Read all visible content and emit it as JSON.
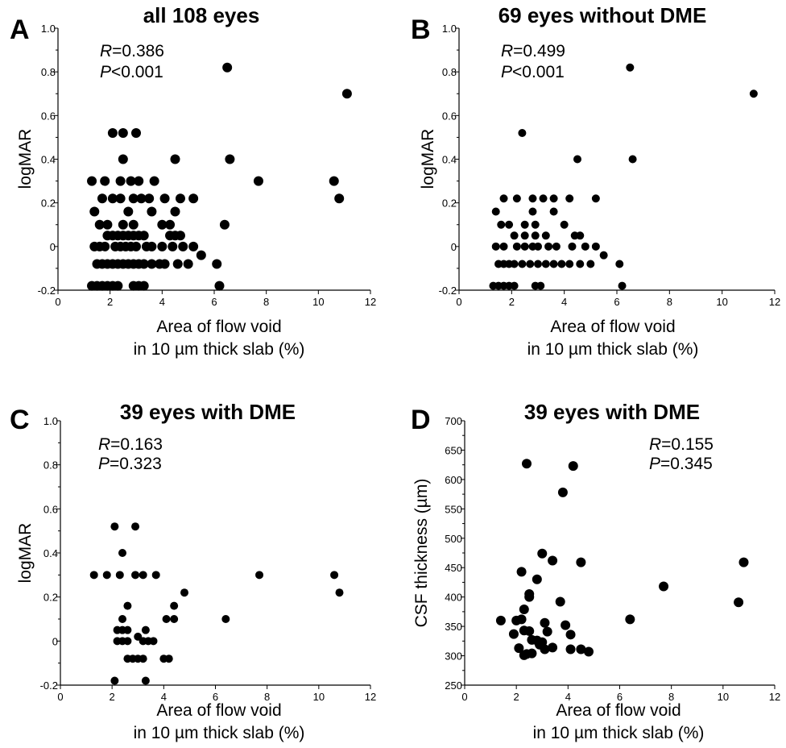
{
  "chart_data": [
    {
      "type": "scatter",
      "panel": "A",
      "title": "all 108 eyes",
      "xlabel_line1": "Area of flow void",
      "xlabel_line2": "in 10 µm thick slab (%)",
      "ylabel": "logMAR",
      "xlim": [
        0,
        12
      ],
      "ylim": [
        -0.2,
        1.0
      ],
      "xticks": [
        "0",
        "2",
        "4",
        "6",
        "8",
        "10",
        "12"
      ],
      "yticks": [
        "-0.2",
        "0",
        "0.2",
        "0.4",
        "0.6",
        "0.8",
        "1.0"
      ],
      "stat": {
        "r_label": "R",
        "r_value": "=0.386",
        "p_label": "P",
        "p_value": "<0.001"
      },
      "points": [
        [
          1.3,
          -0.18
        ],
        [
          1.5,
          -0.18
        ],
        [
          1.7,
          -0.18
        ],
        [
          1.9,
          -0.18
        ],
        [
          2.1,
          -0.18
        ],
        [
          2.3,
          -0.18
        ],
        [
          2.9,
          -0.18
        ],
        [
          3.1,
          -0.18
        ],
        [
          3.3,
          -0.18
        ],
        [
          6.2,
          -0.18
        ],
        [
          1.5,
          -0.08
        ],
        [
          1.7,
          -0.08
        ],
        [
          1.9,
          -0.08
        ],
        [
          2.1,
          -0.08
        ],
        [
          2.3,
          -0.08
        ],
        [
          2.5,
          -0.08
        ],
        [
          2.7,
          -0.08
        ],
        [
          2.9,
          -0.08
        ],
        [
          3.1,
          -0.08
        ],
        [
          3.3,
          -0.08
        ],
        [
          3.6,
          -0.08
        ],
        [
          3.9,
          -0.08
        ],
        [
          4.1,
          -0.08
        ],
        [
          4.6,
          -0.08
        ],
        [
          5.0,
          -0.08
        ],
        [
          6.1,
          -0.08
        ],
        [
          5.5,
          -0.04
        ],
        [
          1.4,
          0.0
        ],
        [
          1.6,
          0.0
        ],
        [
          1.8,
          0.0
        ],
        [
          2.2,
          0.0
        ],
        [
          2.4,
          0.0
        ],
        [
          2.6,
          0.0
        ],
        [
          2.8,
          0.0
        ],
        [
          3.0,
          0.0
        ],
        [
          3.4,
          0.0
        ],
        [
          3.6,
          0.0
        ],
        [
          4.0,
          0.0
        ],
        [
          4.4,
          0.0
        ],
        [
          4.8,
          0.0
        ],
        [
          5.2,
          0.0
        ],
        [
          1.9,
          0.05
        ],
        [
          2.1,
          0.05
        ],
        [
          2.3,
          0.05
        ],
        [
          2.5,
          0.05
        ],
        [
          2.7,
          0.05
        ],
        [
          2.9,
          0.05
        ],
        [
          3.1,
          0.05
        ],
        [
          3.3,
          0.05
        ],
        [
          4.3,
          0.05
        ],
        [
          4.5,
          0.05
        ],
        [
          4.7,
          0.05
        ],
        [
          1.6,
          0.1
        ],
        [
          1.9,
          0.1
        ],
        [
          2.5,
          0.1
        ],
        [
          2.9,
          0.1
        ],
        [
          4.0,
          0.1
        ],
        [
          4.3,
          0.1
        ],
        [
          6.4,
          0.1
        ],
        [
          1.4,
          0.16
        ],
        [
          2.7,
          0.16
        ],
        [
          3.6,
          0.16
        ],
        [
          4.5,
          0.16
        ],
        [
          1.7,
          0.22
        ],
        [
          2.1,
          0.22
        ],
        [
          2.4,
          0.22
        ],
        [
          2.9,
          0.22
        ],
        [
          3.2,
          0.22
        ],
        [
          3.5,
          0.22
        ],
        [
          4.1,
          0.22
        ],
        [
          4.7,
          0.22
        ],
        [
          5.2,
          0.22
        ],
        [
          10.8,
          0.22
        ],
        [
          1.3,
          0.3
        ],
        [
          1.8,
          0.3
        ],
        [
          2.4,
          0.3
        ],
        [
          2.8,
          0.3
        ],
        [
          3.1,
          0.3
        ],
        [
          3.7,
          0.3
        ],
        [
          7.7,
          0.3
        ],
        [
          10.6,
          0.3
        ],
        [
          2.5,
          0.4
        ],
        [
          4.5,
          0.4
        ],
        [
          6.6,
          0.4
        ],
        [
          2.1,
          0.52
        ],
        [
          2.5,
          0.52
        ],
        [
          3.0,
          0.52
        ],
        [
          11.1,
          0.7
        ],
        [
          6.5,
          0.82
        ]
      ]
    },
    {
      "type": "scatter",
      "panel": "B",
      "title": "69 eyes without DME",
      "xlabel_line1": "Area of flow void",
      "xlabel_line2": "in 10 µm thick slab (%)",
      "ylabel": "logMAR",
      "xlim": [
        0,
        12
      ],
      "ylim": [
        -0.2,
        1.0
      ],
      "xticks": [
        "0",
        "2",
        "4",
        "6",
        "8",
        "10",
        "12"
      ],
      "yticks": [
        "-0.2",
        "0",
        "0.2",
        "0.4",
        "0.6",
        "0.8",
        "1.0"
      ],
      "stat": {
        "r_label": "R",
        "r_value": "=0.499",
        "p_label": "P",
        "p_value": "<0.001"
      },
      "points": [
        [
          1.3,
          -0.18
        ],
        [
          1.5,
          -0.18
        ],
        [
          1.7,
          -0.18
        ],
        [
          1.9,
          -0.18
        ],
        [
          2.1,
          -0.18
        ],
        [
          2.9,
          -0.18
        ],
        [
          3.1,
          -0.18
        ],
        [
          6.2,
          -0.18
        ],
        [
          1.5,
          -0.08
        ],
        [
          1.7,
          -0.08
        ],
        [
          1.9,
          -0.08
        ],
        [
          2.1,
          -0.08
        ],
        [
          2.4,
          -0.08
        ],
        [
          2.7,
          -0.08
        ],
        [
          3.0,
          -0.08
        ],
        [
          3.3,
          -0.08
        ],
        [
          3.6,
          -0.08
        ],
        [
          3.9,
          -0.08
        ],
        [
          4.2,
          -0.08
        ],
        [
          4.6,
          -0.08
        ],
        [
          5.0,
          -0.08
        ],
        [
          6.1,
          -0.08
        ],
        [
          5.5,
          -0.04
        ],
        [
          1.4,
          0.0
        ],
        [
          1.7,
          0.0
        ],
        [
          2.2,
          0.0
        ],
        [
          2.5,
          0.0
        ],
        [
          2.8,
          0.0
        ],
        [
          3.0,
          0.0
        ],
        [
          3.4,
          0.0
        ],
        [
          3.7,
          0.0
        ],
        [
          4.3,
          0.0
        ],
        [
          4.8,
          0.0
        ],
        [
          5.2,
          0.0
        ],
        [
          2.1,
          0.05
        ],
        [
          2.5,
          0.05
        ],
        [
          2.9,
          0.05
        ],
        [
          3.3,
          0.05
        ],
        [
          4.4,
          0.05
        ],
        [
          4.6,
          0.05
        ],
        [
          1.6,
          0.1
        ],
        [
          1.9,
          0.1
        ],
        [
          2.5,
          0.1
        ],
        [
          2.9,
          0.1
        ],
        [
          4.0,
          0.1
        ],
        [
          1.4,
          0.16
        ],
        [
          2.8,
          0.16
        ],
        [
          3.6,
          0.16
        ],
        [
          1.7,
          0.22
        ],
        [
          2.2,
          0.22
        ],
        [
          2.8,
          0.22
        ],
        [
          3.2,
          0.22
        ],
        [
          3.6,
          0.22
        ],
        [
          4.2,
          0.22
        ],
        [
          5.2,
          0.22
        ],
        [
          2.4,
          0.52
        ],
        [
          4.5,
          0.4
        ],
        [
          6.6,
          0.4
        ],
        [
          11.2,
          0.7
        ],
        [
          6.5,
          0.82
        ]
      ]
    },
    {
      "type": "scatter",
      "panel": "C",
      "title": "39 eyes with DME",
      "xlabel_line1": "Area of flow void",
      "xlabel_line2": "in 10 µm thick slab (%)",
      "ylabel": "logMAR",
      "xlim": [
        0,
        12
      ],
      "ylim": [
        -0.2,
        1.0
      ],
      "xticks": [
        "0",
        "2",
        "4",
        "6",
        "8",
        "10",
        "12"
      ],
      "yticks": [
        "-0.2",
        "0",
        "0.2",
        "0.4",
        "0.6",
        "0.8",
        "1.0"
      ],
      "stat": {
        "r_label": "R",
        "r_value": "=0.163",
        "p_label": "P",
        "p_value": "=0.323"
      },
      "points": [
        [
          1.3,
          0.3
        ],
        [
          1.8,
          0.3
        ],
        [
          2.3,
          0.3
        ],
        [
          2.9,
          0.3
        ],
        [
          3.2,
          0.3
        ],
        [
          3.7,
          0.3
        ],
        [
          7.7,
          0.3
        ],
        [
          10.6,
          0.3
        ],
        [
          2.1,
          0.52
        ],
        [
          2.9,
          0.52
        ],
        [
          2.4,
          0.4
        ],
        [
          2.6,
          0.16
        ],
        [
          4.4,
          0.16
        ],
        [
          4.8,
          0.22
        ],
        [
          10.8,
          0.22
        ],
        [
          2.2,
          0.05
        ],
        [
          2.4,
          0.05
        ],
        [
          2.6,
          0.05
        ],
        [
          3.3,
          0.05
        ],
        [
          2.4,
          0.1
        ],
        [
          4.1,
          0.1
        ],
        [
          4.4,
          0.1
        ],
        [
          6.4,
          0.1
        ],
        [
          2.2,
          0.0
        ],
        [
          2.4,
          0.0
        ],
        [
          2.6,
          0.0
        ],
        [
          3.4,
          0.0
        ],
        [
          3.6,
          0.0
        ],
        [
          3.0,
          0.02
        ],
        [
          3.2,
          0.0
        ],
        [
          2.6,
          -0.08
        ],
        [
          2.8,
          -0.08
        ],
        [
          3.0,
          -0.08
        ],
        [
          3.2,
          -0.08
        ],
        [
          4.0,
          -0.08
        ],
        [
          4.2,
          -0.08
        ],
        [
          2.1,
          -0.18
        ],
        [
          3.3,
          -0.18
        ]
      ]
    },
    {
      "type": "scatter",
      "panel": "D",
      "title": "39 eyes with DME",
      "xlabel_line1": "Area of flow void",
      "xlabel_line2": "in 10 µm thick slab (%)",
      "ylabel": "CSF thickness (µm)",
      "xlim": [
        0,
        12
      ],
      "ylim": [
        250,
        700
      ],
      "xticks": [
        "0",
        "2",
        "4",
        "6",
        "8",
        "10",
        "12"
      ],
      "yticks": [
        "250",
        "300",
        "350",
        "400",
        "450",
        "500",
        "550",
        "600",
        "650",
        "700"
      ],
      "stat": {
        "r_label": "R",
        "r_value": "=0.155",
        "p_label": "P",
        "p_value": "=0.345"
      },
      "points": [
        [
          2.4,
          627
        ],
        [
          4.2,
          623
        ],
        [
          3.8,
          578
        ],
        [
          3.0,
          474
        ],
        [
          3.4,
          462
        ],
        [
          4.5,
          459
        ],
        [
          10.8,
          459
        ],
        [
          2.2,
          443
        ],
        [
          2.8,
          430
        ],
        [
          7.7,
          418
        ],
        [
          2.5,
          405
        ],
        [
          2.5,
          400
        ],
        [
          3.7,
          392
        ],
        [
          10.6,
          391
        ],
        [
          2.3,
          379
        ],
        [
          1.4,
          360
        ],
        [
          2.0,
          360
        ],
        [
          2.2,
          362
        ],
        [
          3.1,
          356
        ],
        [
          3.9,
          352
        ],
        [
          6.4,
          362
        ],
        [
          2.3,
          343
        ],
        [
          2.5,
          342
        ],
        [
          3.2,
          341
        ],
        [
          1.9,
          337
        ],
        [
          2.6,
          327
        ],
        [
          2.8,
          326
        ],
        [
          4.1,
          336
        ],
        [
          2.1,
          313
        ],
        [
          3.4,
          314
        ],
        [
          2.9,
          319
        ],
        [
          3.1,
          311
        ],
        [
          4.1,
          311
        ],
        [
          4.5,
          311
        ],
        [
          4.8,
          307
        ],
        [
          2.4,
          303
        ],
        [
          2.6,
          304
        ],
        [
          2.3,
          301
        ],
        [
          3.0,
          323
        ]
      ]
    }
  ]
}
